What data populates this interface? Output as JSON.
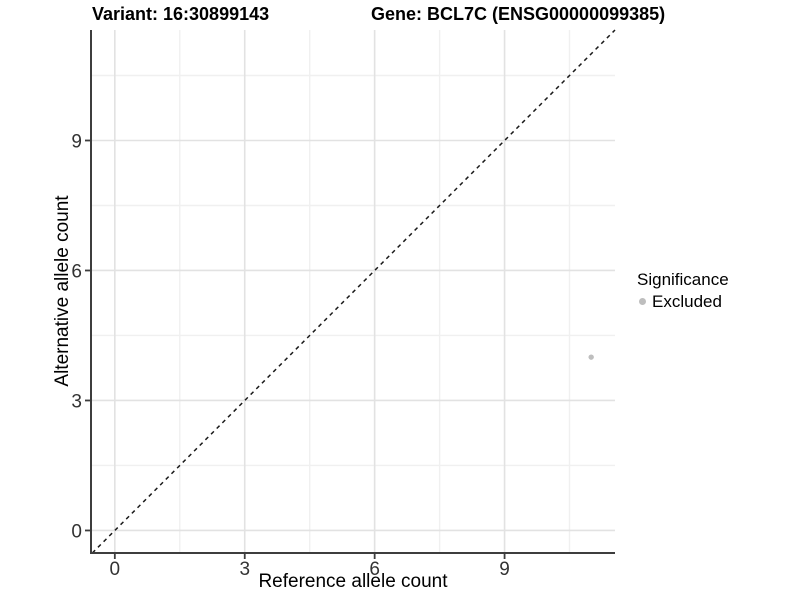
{
  "chart_data": {
    "type": "scatter",
    "title_left": "Variant: 16:30899143",
    "title_right": "Gene: BCL7C (ENSG00000099385)",
    "xlabel": "Reference allele count",
    "ylabel": "Alternative allele count",
    "xticks": [
      0,
      3,
      6,
      9
    ],
    "yticks": [
      0,
      3,
      6,
      9
    ],
    "xlim": [
      -0.55,
      11.55
    ],
    "ylim": [
      -0.52,
      11.55
    ],
    "grid": "major+minor",
    "legend_position": "right",
    "points": [
      {
        "x": 11,
        "y": 4,
        "series": "Excluded"
      }
    ],
    "reference_line": {
      "slope": 1,
      "intercept": 0,
      "linestyle": "dashed"
    },
    "legend": {
      "title": "Significance",
      "entries": [
        {
          "label": "Excluded",
          "color": "#bebebe"
        }
      ]
    },
    "colors": {
      "point": "#bebebe",
      "reference_line": "#1a1a1a",
      "axis_line": "#3d3d3d",
      "tick_label": "#333333",
      "grid_major": "#e2e2e2",
      "grid_minor": "#f0f0f0",
      "background": "#ffffff"
    }
  }
}
